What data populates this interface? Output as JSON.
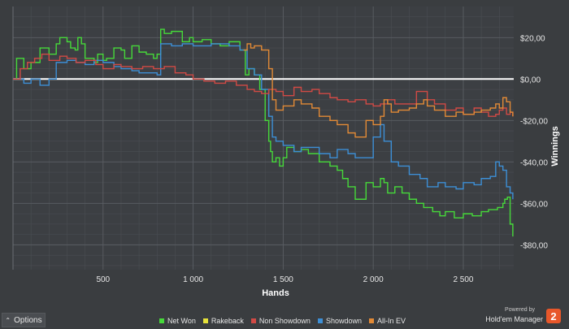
{
  "chart_data": {
    "type": "line",
    "xlabel": "Hands",
    "ylabel": "Winnings",
    "xlim": [
      0,
      2780
    ],
    "ylim": [
      -92,
      35
    ],
    "x_ticks": [
      500,
      1000,
      1500,
      2000,
      2500
    ],
    "x_tick_labels": [
      "500",
      "1 000",
      "1 500",
      "2 000",
      "2 500"
    ],
    "y_ticks": [
      20,
      0,
      -20,
      -40,
      -60,
      -80
    ],
    "y_tick_labels": [
      "$20,00",
      "$0,00",
      "-$20,00",
      "-$40,00",
      "-$60,00",
      "-$80,00"
    ],
    "grid": true,
    "legend_position": "bottom",
    "series": [
      {
        "name": "Net Won",
        "color": "#46d93a",
        "x": [
          0,
          20,
          60,
          100,
          150,
          200,
          240,
          260,
          300,
          320,
          345,
          360,
          380,
          400,
          450,
          470,
          500,
          520,
          560,
          600,
          620,
          660,
          700,
          740,
          780,
          800,
          820,
          840,
          880,
          940,
          980,
          1000,
          1050,
          1100,
          1150,
          1200,
          1260,
          1290,
          1310,
          1340,
          1370,
          1400,
          1420,
          1430,
          1440,
          1460,
          1480,
          1500,
          1520,
          1560,
          1600,
          1640,
          1700,
          1760,
          1800,
          1830,
          1860,
          1900,
          1960,
          2000,
          2040,
          2060,
          2080,
          2120,
          2160,
          2200,
          2240,
          2280,
          2330,
          2370,
          2400,
          2450,
          2500,
          2550,
          2600,
          2640,
          2690,
          2720,
          2730,
          2745,
          2760,
          2775
        ],
        "y": [
          0,
          10,
          5,
          8,
          15,
          12,
          17,
          20,
          18,
          15,
          14,
          20,
          17,
          10,
          8,
          12,
          9,
          10,
          15,
          14,
          10,
          16,
          13,
          12,
          10,
          12,
          24,
          22,
          23,
          18,
          20,
          18,
          19,
          17,
          16,
          18,
          14,
          2,
          5,
          2,
          -5,
          -20,
          -30,
          -35,
          -40,
          -38,
          -42,
          -38,
          -33,
          -35,
          -34,
          -36,
          -40,
          -42,
          -44,
          -48,
          -52,
          -58,
          -50,
          -52,
          -48,
          -50,
          -55,
          -52,
          -55,
          -58,
          -60,
          -62,
          -64,
          -66,
          -64,
          -67,
          -65,
          -66,
          -64,
          -63,
          -62,
          -60,
          -58,
          -57,
          -70,
          -76
        ]
      },
      {
        "name": "Showdown",
        "color": "#3d8fd6",
        "x": [
          0,
          60,
          100,
          150,
          200,
          240,
          300,
          350,
          400,
          450,
          500,
          560,
          600,
          660,
          700,
          800,
          820,
          880,
          940,
          1000,
          1100,
          1200,
          1260,
          1300,
          1340,
          1380,
          1420,
          1440,
          1460,
          1500,
          1560,
          1600,
          1700,
          1760,
          1800,
          1860,
          1900,
          1960,
          2000,
          2040,
          2060,
          2100,
          2140,
          2200,
          2260,
          2300,
          2360,
          2400,
          2460,
          2500,
          2560,
          2600,
          2650,
          2680,
          2700,
          2720,
          2740,
          2760,
          2775
        ],
        "y": [
          0,
          -2,
          0,
          -3,
          0,
          8,
          9,
          8,
          7,
          9,
          8,
          6,
          5,
          4,
          3,
          2,
          17,
          16,
          17,
          16,
          17,
          16,
          14,
          5,
          2,
          -5,
          -18,
          -28,
          -30,
          -32,
          -35,
          -33,
          -36,
          -38,
          -34,
          -36,
          -38,
          -38,
          -28,
          -22,
          -30,
          -40,
          -42,
          -46,
          -48,
          -52,
          -50,
          -52,
          -53,
          -50,
          -51,
          -48,
          -47,
          -40,
          -42,
          -44,
          -52,
          -55,
          -58
        ]
      },
      {
        "name": "Non Showdown",
        "color": "#d14a45",
        "x": [
          0,
          40,
          80,
          120,
          160,
          200,
          260,
          300,
          350,
          400,
          460,
          500,
          560,
          600,
          660,
          720,
          780,
          840,
          900,
          960,
          1000,
          1060,
          1120,
          1180,
          1240,
          1300,
          1340,
          1380,
          1420,
          1460,
          1500,
          1560,
          1600,
          1660,
          1700,
          1760,
          1800,
          1860,
          1900,
          1960,
          2000,
          2040,
          2080,
          2120,
          2180,
          2240,
          2300,
          2340,
          2400,
          2460,
          2500,
          2560,
          2600,
          2640,
          2680,
          2700,
          2720,
          2740,
          2760,
          2775
        ],
        "y": [
          0,
          5,
          8,
          10,
          12,
          9,
          11,
          10,
          8,
          9,
          7,
          5,
          7,
          6,
          5,
          6,
          5,
          6,
          3,
          2,
          0,
          -1,
          -2,
          -1,
          -3,
          -5,
          -6,
          -7,
          -5,
          -6,
          -8,
          -4,
          -6,
          -5,
          -7,
          -9,
          -10,
          -11,
          -10,
          -12,
          -13,
          -12,
          -10,
          -12,
          -12,
          -6,
          -10,
          -12,
          -15,
          -14,
          -17,
          -14,
          -16,
          -18,
          -17,
          -15,
          -14,
          -17,
          -16,
          -18
        ]
      },
      {
        "name": "All-In EV",
        "color": "#e28a36",
        "x": [
          1280,
          1300,
          1320,
          1340,
          1380,
          1420,
          1440,
          1460,
          1500,
          1560,
          1600,
          1660,
          1700,
          1760,
          1800,
          1860,
          1900,
          1960,
          2000,
          2040,
          2060,
          2080,
          2100,
          2140,
          2200,
          2240,
          2280,
          2300,
          2340,
          2400,
          2460,
          2500,
          2560,
          2600,
          2650,
          2680,
          2700,
          2720,
          2740,
          2760,
          2775
        ],
        "y": [
          14,
          17,
          15,
          16,
          14,
          5,
          -10,
          -15,
          -13,
          -10,
          -12,
          -14,
          -18,
          -20,
          -22,
          -26,
          -28,
          -20,
          -22,
          -18,
          -10,
          -12,
          -16,
          -15,
          -14,
          -12,
          -10,
          -13,
          -15,
          -18,
          -16,
          -17,
          -16,
          -15,
          -14,
          -12,
          -14,
          -9,
          -11,
          -16,
          -18
        ]
      },
      {
        "name": "Rakeback",
        "color": "#e6e23a",
        "x": [
          0,
          2775
        ],
        "y": [
          0,
          0
        ]
      }
    ]
  },
  "options_label": "Options",
  "options_icon": "chevron-up-icon",
  "branding": {
    "powered_by": "Powered by",
    "name": "Hold'em Manager",
    "logo_text": "2"
  }
}
